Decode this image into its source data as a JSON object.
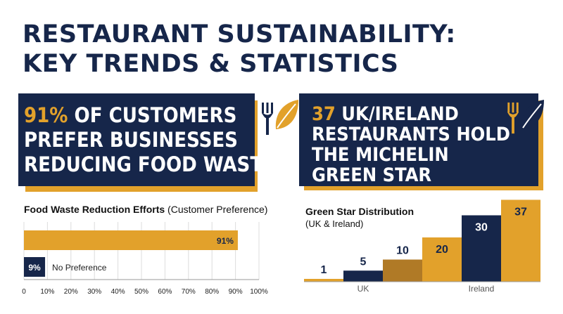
{
  "title": {
    "line1": "RESTAURANT SUSTAINABILITY:",
    "line2": "KEY TRENDS & STATISTICS"
  },
  "banner_left": {
    "highlight": "91%",
    "line1_rest": " OF CUSTOMERS",
    "line2": "PREFER BUSINESSES",
    "line3": "REDUCING FOOD WASTE"
  },
  "banner_right": {
    "highlight": "37",
    "line1_rest": " UK/IRELAND",
    "line2": "RESTAURANTS HOLD",
    "line3": "THE MICHELIN",
    "line4": "GREEN STAR"
  },
  "icons": {
    "left": [
      "fork-icon",
      "leaf-icon"
    ],
    "right": [
      "fork-icon",
      "leaf-icon"
    ]
  },
  "colors": {
    "navy": "#16264a",
    "gold": "#e2a12b",
    "dark_gold": "#b07a26",
    "white": "#ffffff"
  },
  "chart_data": [
    {
      "type": "bar",
      "orientation": "horizontal",
      "title_bold": "Food Waste Reduction Efforts",
      "title_rest": " (Customer Preference)",
      "bars": [
        {
          "value": 91,
          "label": "91%",
          "color": "#e2a12b"
        },
        {
          "value": 9,
          "label": "9%",
          "category": "No Preference",
          "color": "#16264a"
        }
      ],
      "xlim": [
        0,
        100
      ],
      "xticks": [
        "0",
        "10%",
        "20%",
        "30%",
        "40%",
        "50%",
        "60%",
        "70%",
        "80%",
        "90%",
        "100%"
      ],
      "grid": true
    },
    {
      "type": "bar",
      "title": "Green Star Distribution",
      "subtitle": "(UK & Ireland)",
      "values": [
        1,
        5,
        10,
        20,
        30,
        37
      ],
      "colors": [
        "#e2a12b",
        "#16264a",
        "#b07a26",
        "#e2a12b",
        "#16264a",
        "#e2a12b"
      ],
      "ylim": [
        0,
        40
      ],
      "xticklabels": [
        {
          "text": "UK",
          "at_bar": 1.5
        },
        {
          "text": "Ireland",
          "at_bar": 4.5
        }
      ],
      "grid": false
    }
  ]
}
